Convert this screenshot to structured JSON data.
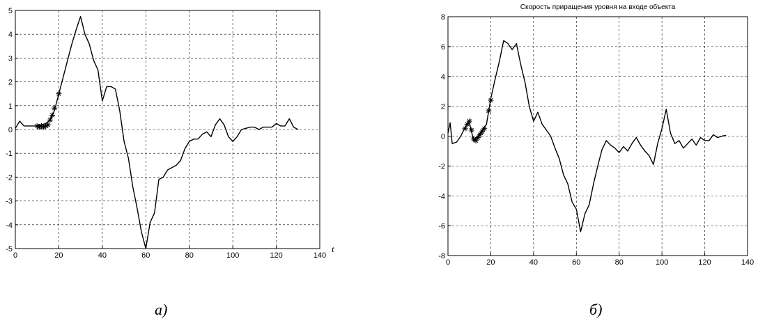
{
  "chart_data": [
    {
      "type": "line",
      "title": "",
      "caption": "а)",
      "xlabel": "t",
      "ylabel": "",
      "xlim": [
        0,
        140
      ],
      "ylim": [
        -5,
        5
      ],
      "xticks": [
        0,
        20,
        40,
        60,
        80,
        100,
        120,
        140
      ],
      "yticks": [
        -5,
        -4,
        -3,
        -2,
        -1,
        0,
        1,
        2,
        3,
        4,
        5
      ],
      "grid": true,
      "series": [
        {
          "values": [
            [
              0,
              0.05
            ],
            [
              2,
              0.35
            ],
            [
              4,
              0.15
            ],
            [
              6,
              0.15
            ],
            [
              8,
              0.15
            ],
            [
              10,
              0.15
            ],
            [
              12,
              0.2
            ],
            [
              14,
              0.25
            ],
            [
              16,
              0.4
            ],
            [
              18,
              0.8
            ],
            [
              20,
              1.5
            ],
            [
              22,
              2.2
            ],
            [
              24,
              2.9
            ],
            [
              26,
              3.6
            ],
            [
              28,
              4.2
            ],
            [
              30,
              4.75
            ],
            [
              32,
              4.0
            ],
            [
              34,
              3.6
            ],
            [
              36,
              2.9
            ],
            [
              38,
              2.5
            ],
            [
              40,
              1.2
            ],
            [
              42,
              1.8
            ],
            [
              44,
              1.8
            ],
            [
              46,
              1.7
            ],
            [
              48,
              0.8
            ],
            [
              50,
              -0.5
            ],
            [
              52,
              -1.2
            ],
            [
              54,
              -2.4
            ],
            [
              56,
              -3.3
            ],
            [
              58,
              -4.3
            ],
            [
              60,
              -5.0
            ],
            [
              62,
              -3.9
            ],
            [
              64,
              -3.5
            ],
            [
              66,
              -2.1
            ],
            [
              68,
              -2.0
            ],
            [
              70,
              -1.7
            ],
            [
              72,
              -1.6
            ],
            [
              74,
              -1.5
            ],
            [
              76,
              -1.3
            ],
            [
              78,
              -0.8
            ],
            [
              80,
              -0.5
            ],
            [
              82,
              -0.4
            ],
            [
              84,
              -0.4
            ],
            [
              86,
              -0.2
            ],
            [
              88,
              -0.1
            ],
            [
              90,
              -0.3
            ],
            [
              92,
              0.2
            ],
            [
              94,
              0.45
            ],
            [
              96,
              0.2
            ],
            [
              98,
              -0.3
            ],
            [
              100,
              -0.5
            ],
            [
              102,
              -0.3
            ],
            [
              104,
              0.0
            ],
            [
              106,
              0.05
            ],
            [
              108,
              0.1
            ],
            [
              110,
              0.1
            ],
            [
              112,
              0.0
            ],
            [
              114,
              0.1
            ],
            [
              116,
              0.1
            ],
            [
              118,
              0.1
            ],
            [
              120,
              0.25
            ],
            [
              122,
              0.15
            ],
            [
              124,
              0.15
            ],
            [
              126,
              0.45
            ],
            [
              128,
              0.1
            ],
            [
              130,
              0.0
            ]
          ],
          "markers": [
            [
              10,
              0.15
            ],
            [
              11,
              0.1
            ],
            [
              12,
              0.15
            ],
            [
              13,
              0.1
            ],
            [
              14,
              0.15
            ],
            [
              15,
              0.2
            ],
            [
              16,
              0.4
            ],
            [
              17,
              0.6
            ],
            [
              18,
              0.9
            ],
            [
              20,
              1.5
            ]
          ]
        }
      ]
    },
    {
      "type": "line",
      "title": "Скорость приращения уровня на входе объекта",
      "caption": "б)",
      "xlabel": "",
      "ylabel": "",
      "xlim": [
        0,
        140
      ],
      "ylim": [
        -8,
        8
      ],
      "xticks": [
        0,
        20,
        40,
        60,
        80,
        100,
        120,
        140
      ],
      "yticks": [
        -8,
        -6,
        -4,
        -2,
        0,
        2,
        4,
        6,
        8
      ],
      "grid": true,
      "series": [
        {
          "values": [
            [
              0,
              0.2
            ],
            [
              1,
              0.9
            ],
            [
              2,
              -0.5
            ],
            [
              4,
              -0.4
            ],
            [
              6,
              0.0
            ],
            [
              8,
              0.6
            ],
            [
              10,
              0.9
            ],
            [
              12,
              -0.3
            ],
            [
              14,
              0.0
            ],
            [
              16,
              0.4
            ],
            [
              18,
              0.8
            ],
            [
              20,
              2.5
            ],
            [
              22,
              3.8
            ],
            [
              24,
              5.0
            ],
            [
              26,
              6.4
            ],
            [
              28,
              6.2
            ],
            [
              30,
              5.8
            ],
            [
              32,
              6.2
            ],
            [
              34,
              4.8
            ],
            [
              36,
              3.6
            ],
            [
              38,
              2.0
            ],
            [
              40,
              1.0
            ],
            [
              42,
              1.6
            ],
            [
              44,
              0.8
            ],
            [
              46,
              0.4
            ],
            [
              48,
              0.0
            ],
            [
              50,
              -0.8
            ],
            [
              52,
              -1.5
            ],
            [
              54,
              -2.6
            ],
            [
              56,
              -3.2
            ],
            [
              58,
              -4.4
            ],
            [
              60,
              -4.9
            ],
            [
              62,
              -6.4
            ],
            [
              64,
              -5.2
            ],
            [
              66,
              -4.6
            ],
            [
              68,
              -3.2
            ],
            [
              70,
              -2.0
            ],
            [
              72,
              -0.9
            ],
            [
              74,
              -0.3
            ],
            [
              76,
              -0.6
            ],
            [
              78,
              -0.8
            ],
            [
              80,
              -1.1
            ],
            [
              82,
              -0.7
            ],
            [
              84,
              -1.0
            ],
            [
              86,
              -0.5
            ],
            [
              88,
              -0.1
            ],
            [
              90,
              -0.6
            ],
            [
              92,
              -1.0
            ],
            [
              94,
              -1.3
            ],
            [
              96,
              -1.9
            ],
            [
              98,
              -0.5
            ],
            [
              100,
              0.5
            ],
            [
              102,
              1.8
            ],
            [
              104,
              0.2
            ],
            [
              106,
              -0.5
            ],
            [
              108,
              -0.3
            ],
            [
              110,
              -0.8
            ],
            [
              112,
              -0.5
            ],
            [
              114,
              -0.2
            ],
            [
              116,
              -0.6
            ],
            [
              118,
              -0.1
            ],
            [
              120,
              -0.3
            ],
            [
              122,
              -0.3
            ],
            [
              124,
              0.1
            ],
            [
              126,
              -0.1
            ],
            [
              128,
              0.0
            ],
            [
              130,
              0.05
            ]
          ],
          "markers": [
            [
              8,
              0.5
            ],
            [
              9,
              0.8
            ],
            [
              10,
              1.0
            ],
            [
              11,
              0.4
            ],
            [
              12,
              -0.2
            ],
            [
              13,
              -0.3
            ],
            [
              14,
              -0.1
            ],
            [
              15,
              0.1
            ],
            [
              16,
              0.3
            ],
            [
              17,
              0.5
            ],
            [
              19,
              1.7
            ],
            [
              20,
              2.4
            ]
          ]
        }
      ]
    }
  ]
}
